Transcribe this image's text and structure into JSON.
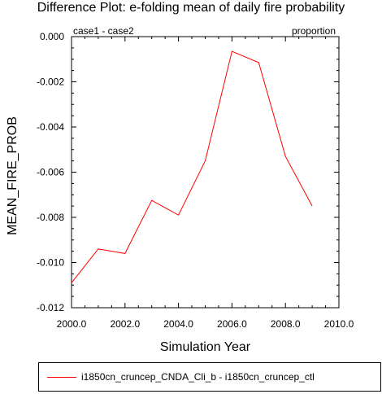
{
  "chart_data": {
    "type": "line",
    "title": "Difference Plot: e-folding mean of daily fire probability",
    "left_subtitle": "case1 - case2",
    "right_subtitle": "proportion",
    "xlabel": "Simulation Year",
    "ylabel": "MEAN_FIRE_PROB",
    "xlim": [
      2000,
      2010
    ],
    "ylim": [
      -0.012,
      0.0
    ],
    "x_ticks": [
      2000,
      2002,
      2004,
      2006,
      2008,
      2010
    ],
    "x_tick_labels": [
      "2000.0",
      "2002.0",
      "2004.0",
      "2006.0",
      "2008.0",
      "2010.0"
    ],
    "y_ticks": [
      0.0,
      -0.002,
      -0.004,
      -0.006,
      -0.008,
      -0.01,
      -0.012
    ],
    "y_tick_labels": [
      "0.000",
      "-0.002",
      "-0.004",
      "-0.006",
      "-0.008",
      "-0.010",
      "-0.012"
    ],
    "grid": false,
    "legend_position": "bottom",
    "colors": {
      "series": "#ff0000",
      "axis": "#000000"
    },
    "x": [
      2000,
      2001,
      2002,
      2003,
      2004,
      2005,
      2006,
      2007,
      2008,
      2009
    ],
    "series": [
      {
        "name": "i1850cn_cruncep_CNDA_Cli_b - i1850cn_cruncep_ctl",
        "values": [
          -0.0109,
          -0.0094,
          -0.0096,
          -0.00725,
          -0.0079,
          -0.0055,
          -0.00065,
          -0.00115,
          -0.0053,
          -0.0075
        ]
      }
    ]
  }
}
